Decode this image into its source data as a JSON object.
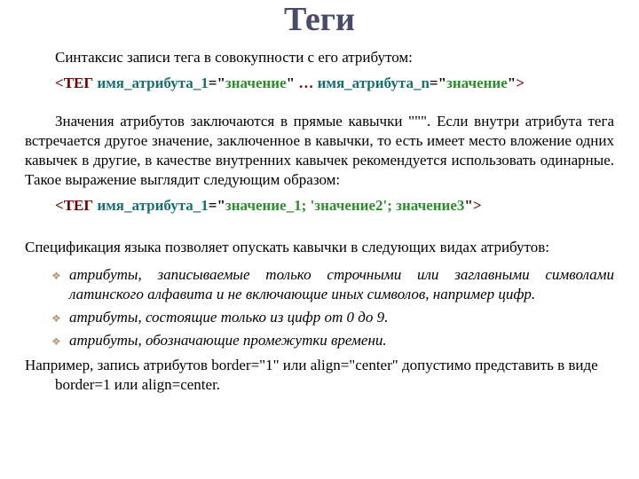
{
  "colors": {
    "title": "#4a4a6a",
    "black": "#000000",
    "darkred": "#6b0000",
    "teal": "#1a6e6e",
    "green": "#2e8b2e",
    "diamond": "#b89a7a"
  },
  "title": "Теги",
  "p1": "Синтаксис записи тега в совокупности с его атрибутом:",
  "syntax1": {
    "lt": "<",
    "tag": "ТЕГ ",
    "a1": "имя_атрибута_1",
    "eq1": "=\"",
    "v1": "значение",
    "q1": "\"",
    "dots": " … ",
    "an": "имя_атрибута_n",
    "eq2": "=\"",
    "vn": "значение",
    "q2": "\"",
    "gt": ">"
  },
  "p2": "Значения атрибутов заключаются в прямые кавычки \"\"\". Если внутри атрибута тега встречается другое значение, заключенное в кавычки, то есть имеет место вложение одних кавычек в другие, в качестве внутренних кавычек рекомендуется использовать одинарные. Такое выражение выглядит следующим образом:",
  "syntax2": {
    "lt": "<",
    "tag": "ТЕГ ",
    "a1": "имя_атрибута_1",
    "eq1": "=\"",
    "v1": "значение_1",
    "s1": ";  ",
    "v2": "'значение2'",
    "s2": ";  ",
    "v3": "значение3",
    "q2": "\"",
    "gt": ">"
  },
  "p3": "Спецификация языка позволяет опускать кавычки в следующих видах атрибутов:",
  "bullets": [
    "атрибуты, записываемые только строчными или заглавными символами латинского алфавита и не включающие иных символов, например цифр.",
    "атрибуты, состоящие только из цифр от 0 до 9.",
    "атрибуты, обозначающие промежутки времени."
  ],
  "p4": "Например, запись атрибутов border=\"1\" или align=\"center\" допустимо представить в виде border=1 или align=center."
}
